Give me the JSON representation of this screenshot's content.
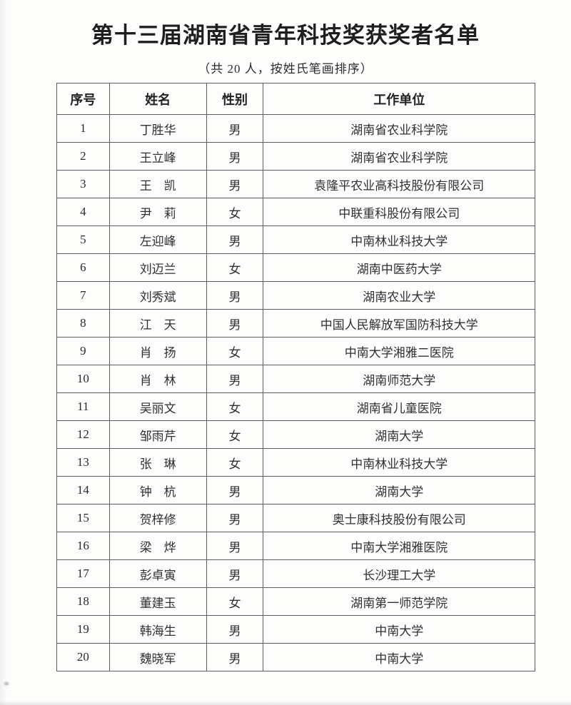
{
  "title": "第十三届湖南省青年科技奖获奖者名单",
  "subtitle": "（共 20 人，按姓氏笔画排序）",
  "table": {
    "headers": [
      "序号",
      "姓名",
      "性别",
      "工作单位"
    ],
    "rows": [
      {
        "no": "1",
        "name": "丁胜华",
        "gender": "男",
        "unit": "湖南省农业科学院"
      },
      {
        "no": "2",
        "name": "王立峰",
        "gender": "男",
        "unit": "湖南省农业科学院"
      },
      {
        "no": "3",
        "name": "王　凯",
        "gender": "男",
        "unit": "袁隆平农业高科技股份有限公司"
      },
      {
        "no": "4",
        "name": "尹　莉",
        "gender": "女",
        "unit": "中联重科股份有限公司"
      },
      {
        "no": "5",
        "name": "左迎峰",
        "gender": "男",
        "unit": "中南林业科技大学"
      },
      {
        "no": "6",
        "name": "刘迈兰",
        "gender": "女",
        "unit": "湖南中医药大学"
      },
      {
        "no": "7",
        "name": "刘秀斌",
        "gender": "男",
        "unit": "湖南农业大学"
      },
      {
        "no": "8",
        "name": "江　天",
        "gender": "男",
        "unit": "中国人民解放军国防科技大学"
      },
      {
        "no": "9",
        "name": "肖　扬",
        "gender": "女",
        "unit": "中南大学湘雅二医院"
      },
      {
        "no": "10",
        "name": "肖　林",
        "gender": "男",
        "unit": "湖南师范大学"
      },
      {
        "no": "11",
        "name": "吴丽文",
        "gender": "女",
        "unit": "湖南省儿童医院"
      },
      {
        "no": "12",
        "name": "邹雨芹",
        "gender": "女",
        "unit": "湖南大学"
      },
      {
        "no": "13",
        "name": "张　琳",
        "gender": "女",
        "unit": "中南林业科技大学"
      },
      {
        "no": "14",
        "name": "钟　杭",
        "gender": "男",
        "unit": "湖南大学"
      },
      {
        "no": "15",
        "name": "贺梓修",
        "gender": "男",
        "unit": "奥士康科技股份有限公司"
      },
      {
        "no": "16",
        "name": "梁　烨",
        "gender": "男",
        "unit": "中南大学湘雅医院"
      },
      {
        "no": "17",
        "name": "彭卓寅",
        "gender": "男",
        "unit": "长沙理工大学"
      },
      {
        "no": "18",
        "name": "董建玉",
        "gender": "女",
        "unit": "湖南第一师范学院"
      },
      {
        "no": "19",
        "name": "韩海生",
        "gender": "男",
        "unit": "中南大学"
      },
      {
        "no": "20",
        "name": "魏晓军",
        "gender": "男",
        "unit": "中南大学"
      }
    ]
  }
}
